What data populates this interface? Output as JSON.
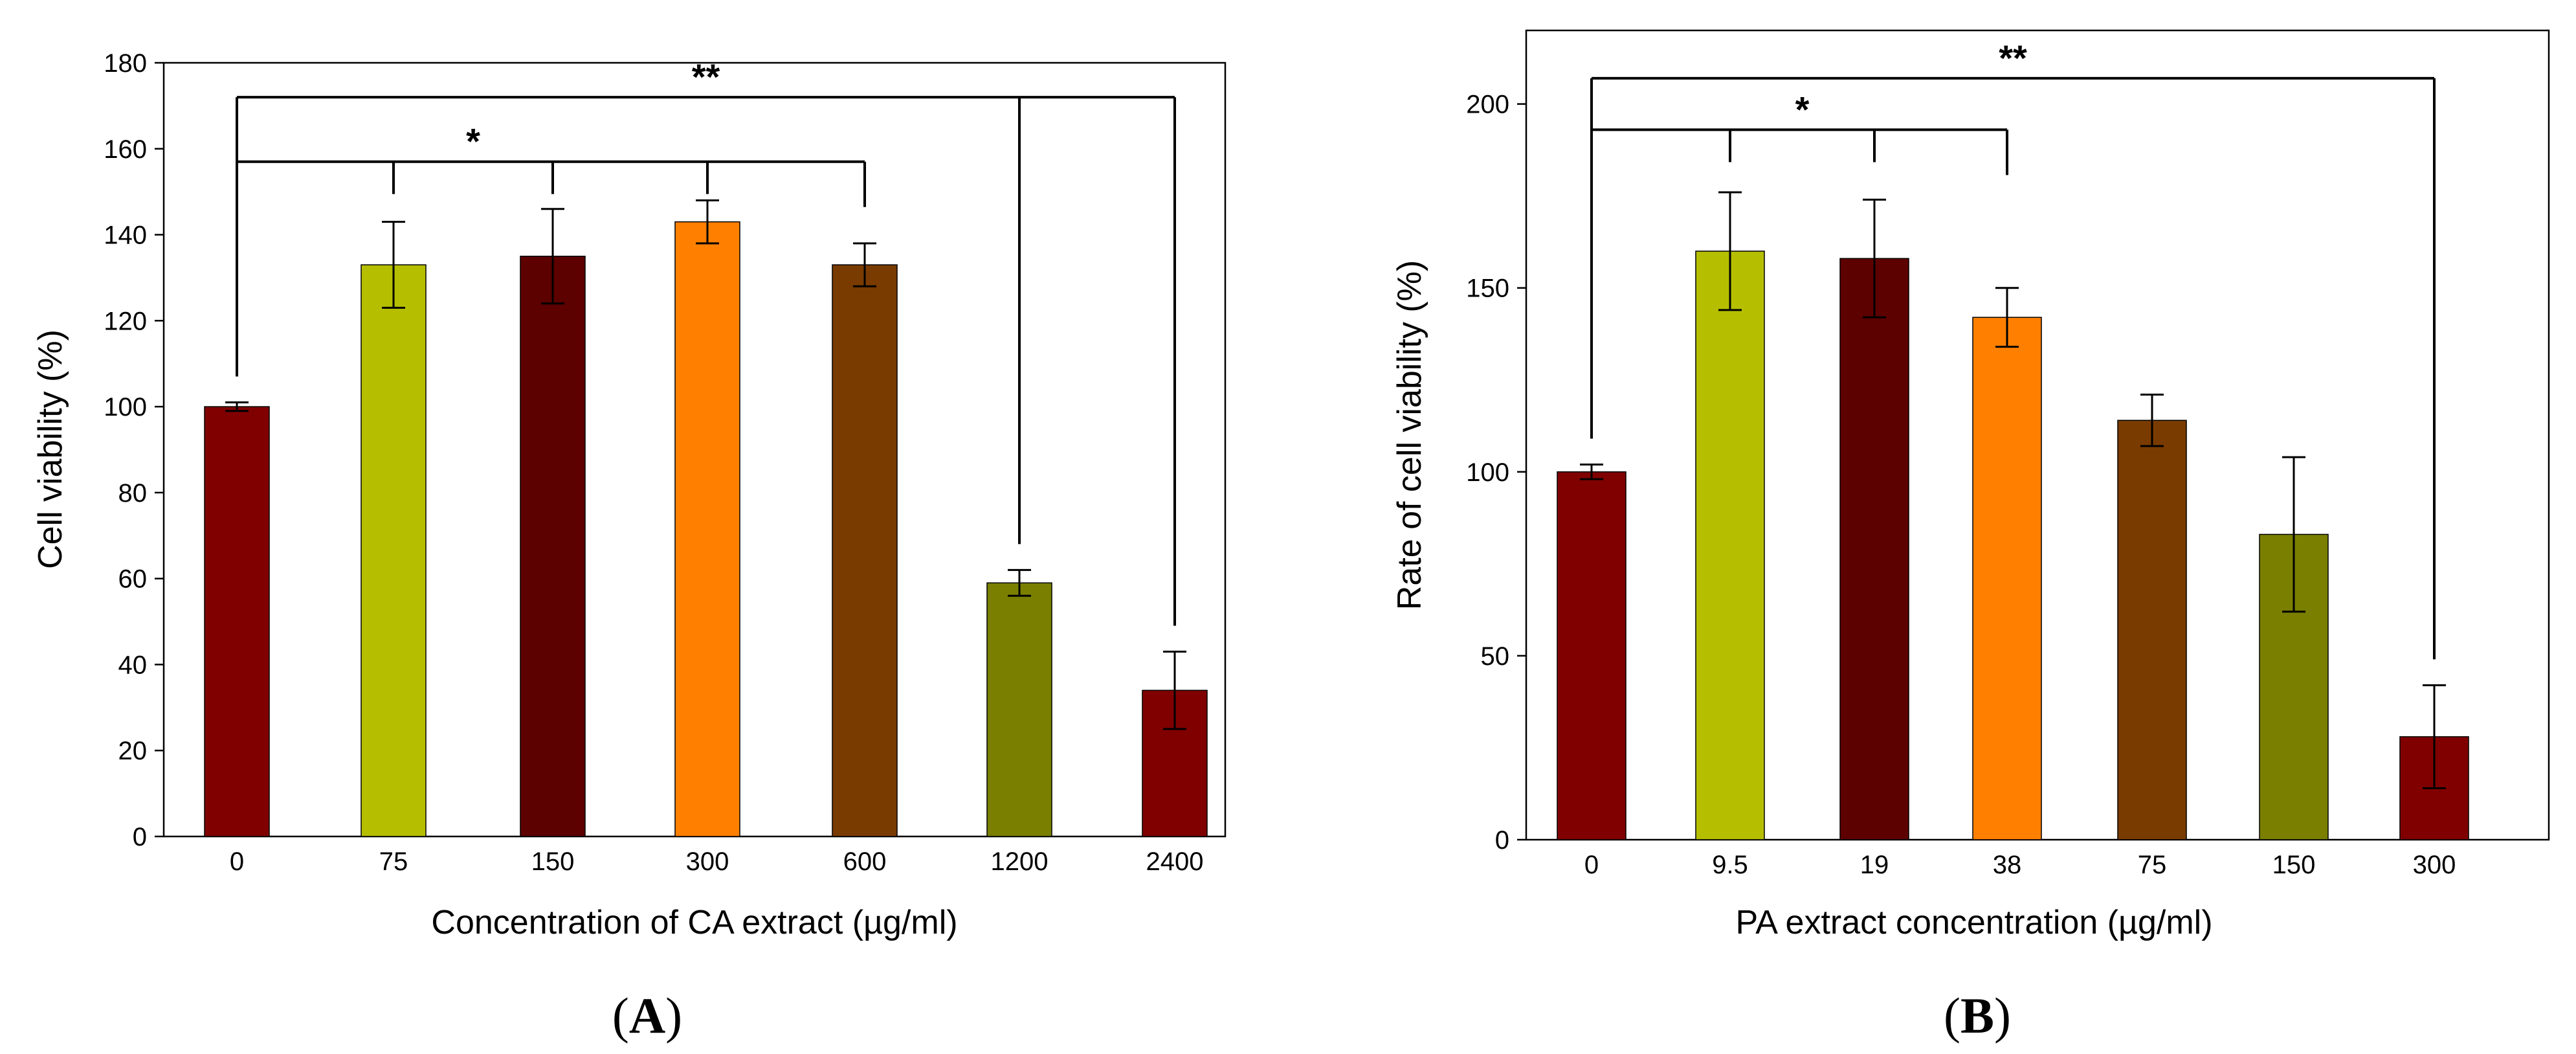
{
  "chart_data": [
    {
      "type": "bar",
      "panel_label_letter": "A",
      "categories": [
        "0",
        "75",
        "150",
        "300",
        "600",
        "1200",
        "2400"
      ],
      "values": [
        100,
        133,
        135,
        143,
        133,
        59,
        34
      ],
      "errors": [
        1,
        10,
        11,
        5,
        5,
        3,
        9
      ],
      "colors": [
        "#800000",
        "#b5bf00",
        "#5c0000",
        "#ff8000",
        "#7a3b00",
        "#7a7f00",
        "#800000"
      ],
      "yticks": [
        "0",
        "20",
        "40",
        "60",
        "80",
        "100",
        "120",
        "140",
        "160",
        "180"
      ],
      "ylim": [
        0,
        180
      ],
      "ylabel": "Cell viability (%)",
      "xlabel": "Concentration of CA extract (µg/ml)",
      "grid": false,
      "annotations": [
        {
          "text": "*",
          "ref": 0,
          "targets": [
            1,
            2,
            3,
            4
          ],
          "level": 157
        },
        {
          "text": "**",
          "ref": 0,
          "targets": [
            5,
            6
          ],
          "level": 172
        }
      ]
    },
    {
      "type": "bar",
      "panel_label_letter": "B",
      "categories": [
        "0",
        "9.5",
        "19",
        "38",
        "75",
        "150",
        "300"
      ],
      "values": [
        100,
        160,
        158,
        142,
        114,
        83,
        28
      ],
      "errors": [
        2,
        16,
        16,
        8,
        7,
        21,
        14
      ],
      "colors": [
        "#800000",
        "#b5bf00",
        "#5c0000",
        "#ff8000",
        "#7a3b00",
        "#7a7f00",
        "#800000"
      ],
      "yticks": [
        "0",
        "50",
        "100",
        "150",
        "200"
      ],
      "ylim": [
        0,
        220
      ],
      "ylabel": "Rate of cell viability (%)",
      "xlabel": "PA extract concentration (µg/ml)",
      "grid": false,
      "annotations": [
        {
          "text": "*",
          "ref": 0,
          "targets": [
            1,
            2,
            3
          ],
          "level": 193
        },
        {
          "text": "**",
          "ref": 0,
          "targets": [
            6
          ],
          "level": 207
        }
      ]
    }
  ]
}
